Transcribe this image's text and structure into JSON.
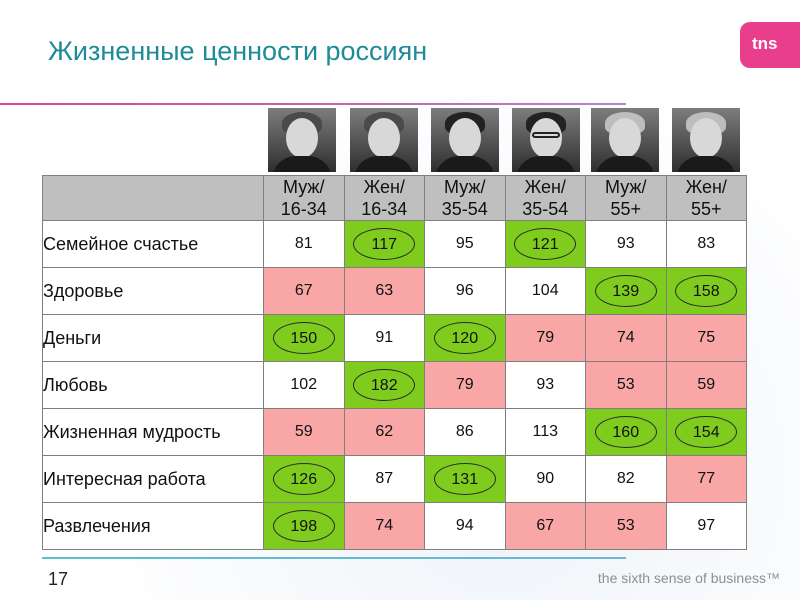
{
  "slide": {
    "title": "Жизненные ценности россиян",
    "logo_text": "tns",
    "page_number": "17",
    "tagline": "the sixth sense of business™"
  },
  "colors": {
    "title": "#1f8a9a",
    "high": "#7fcc1e",
    "low": "#f9a6a6",
    "header": "#bfbfbf",
    "logo": "#e83e8c"
  },
  "table": {
    "columns": [
      {
        "line1": "Муж/",
        "line2": "16-34"
      },
      {
        "line1": "Жен/",
        "line2": "16-34"
      },
      {
        "line1": "Муж/",
        "line2": "35-54"
      },
      {
        "line1": "Жен/",
        "line2": "35-54"
      },
      {
        "line1": "Муж/",
        "line2": "55+"
      },
      {
        "line1": "Жен/",
        "line2": "55+"
      }
    ],
    "rows": [
      {
        "label": "Семейное счастье",
        "values": [
          "81",
          "117",
          "95",
          "121",
          "93",
          "83"
        ],
        "status": [
          "neutral",
          "high",
          "neutral",
          "high",
          "neutral",
          "neutral"
        ]
      },
      {
        "label": "Здоровье",
        "values": [
          "67",
          "63",
          "96",
          "104",
          "139",
          "158"
        ],
        "status": [
          "low",
          "low",
          "neutral",
          "neutral",
          "high",
          "high"
        ]
      },
      {
        "label": "Деньги",
        "values": [
          "150",
          "91",
          "120",
          "79",
          "74",
          "75"
        ],
        "status": [
          "high",
          "neutral",
          "high",
          "low",
          "low",
          "low"
        ]
      },
      {
        "label": "Любовь",
        "values": [
          "102",
          "182",
          "79",
          "93",
          "53",
          "59"
        ],
        "status": [
          "neutral",
          "high",
          "low",
          "neutral",
          "low",
          "low"
        ]
      },
      {
        "label": "Жизненная мудрость",
        "values": [
          "59",
          "62",
          "86",
          "113",
          "160",
          "154"
        ],
        "status": [
          "low",
          "low",
          "neutral",
          "neutral",
          "high",
          "high"
        ]
      },
      {
        "label": "Интересная работа",
        "values": [
          "126",
          "87",
          "131",
          "90",
          "82",
          "77"
        ],
        "status": [
          "high",
          "neutral",
          "high",
          "neutral",
          "neutral",
          "low"
        ]
      },
      {
        "label": "Развлечения",
        "values": [
          "198",
          "74",
          "94",
          "67",
          "53",
          "97"
        ],
        "status": [
          "high",
          "low",
          "neutral",
          "low",
          "low",
          "neutral"
        ]
      }
    ]
  }
}
